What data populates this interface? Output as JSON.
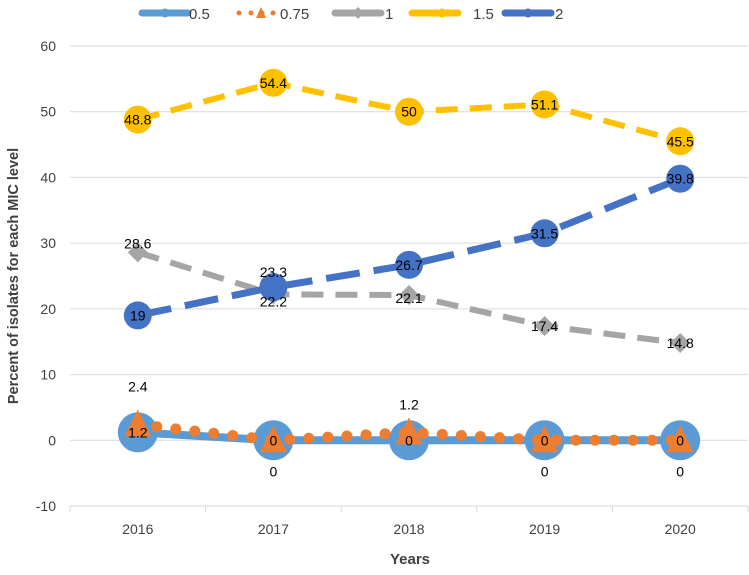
{
  "chart_data": {
    "type": "line",
    "title": "",
    "xlabel": "Years",
    "ylabel": "Percent of isolates  for each MIC  level",
    "categories": [
      "2016",
      "2017",
      "2018",
      "2019",
      "2020"
    ],
    "ylim": [
      -10,
      60
    ],
    "yticks": [
      -10,
      0,
      10,
      20,
      30,
      40,
      50,
      60
    ],
    "grid": true,
    "legend_position": "top",
    "series": [
      {
        "name": "0.5",
        "color": "#5B9BD5",
        "marker": "circle",
        "style": "solid",
        "values": [
          1.2,
          0,
          0,
          0,
          0
        ],
        "labels": [
          "1.2",
          "0",
          "0",
          "0",
          "0"
        ]
      },
      {
        "name": "0.75",
        "color": "#ED7D31",
        "marker": "triangle",
        "style": "dotted",
        "values": [
          2.4,
          0,
          1.2,
          0,
          0
        ],
        "labels": [
          "2.4",
          "0",
          "1.2",
          "0",
          "0"
        ]
      },
      {
        "name": "1",
        "color": "#A5A5A5",
        "marker": "diamond",
        "style": "dashed",
        "values": [
          28.6,
          22.2,
          22.1,
          17.4,
          14.8
        ],
        "labels": [
          "28.6",
          "22.2",
          "22.1",
          "17.4",
          "14.8"
        ]
      },
      {
        "name": "1.5",
        "color": "#FFC000",
        "marker": "circle",
        "style": "dashed",
        "values": [
          48.8,
          54.4,
          50,
          51.1,
          45.5
        ],
        "labels": [
          "48.8",
          "54.4",
          "50",
          "51.1",
          "45.5"
        ]
      },
      {
        "name": "2",
        "color": "#4472C4",
        "marker": "circle",
        "style": "longdash",
        "values": [
          19,
          23.3,
          26.7,
          31.5,
          39.8
        ],
        "labels": [
          "19",
          "23.3",
          "26.7",
          "31.5",
          "39.8"
        ]
      }
    ]
  }
}
